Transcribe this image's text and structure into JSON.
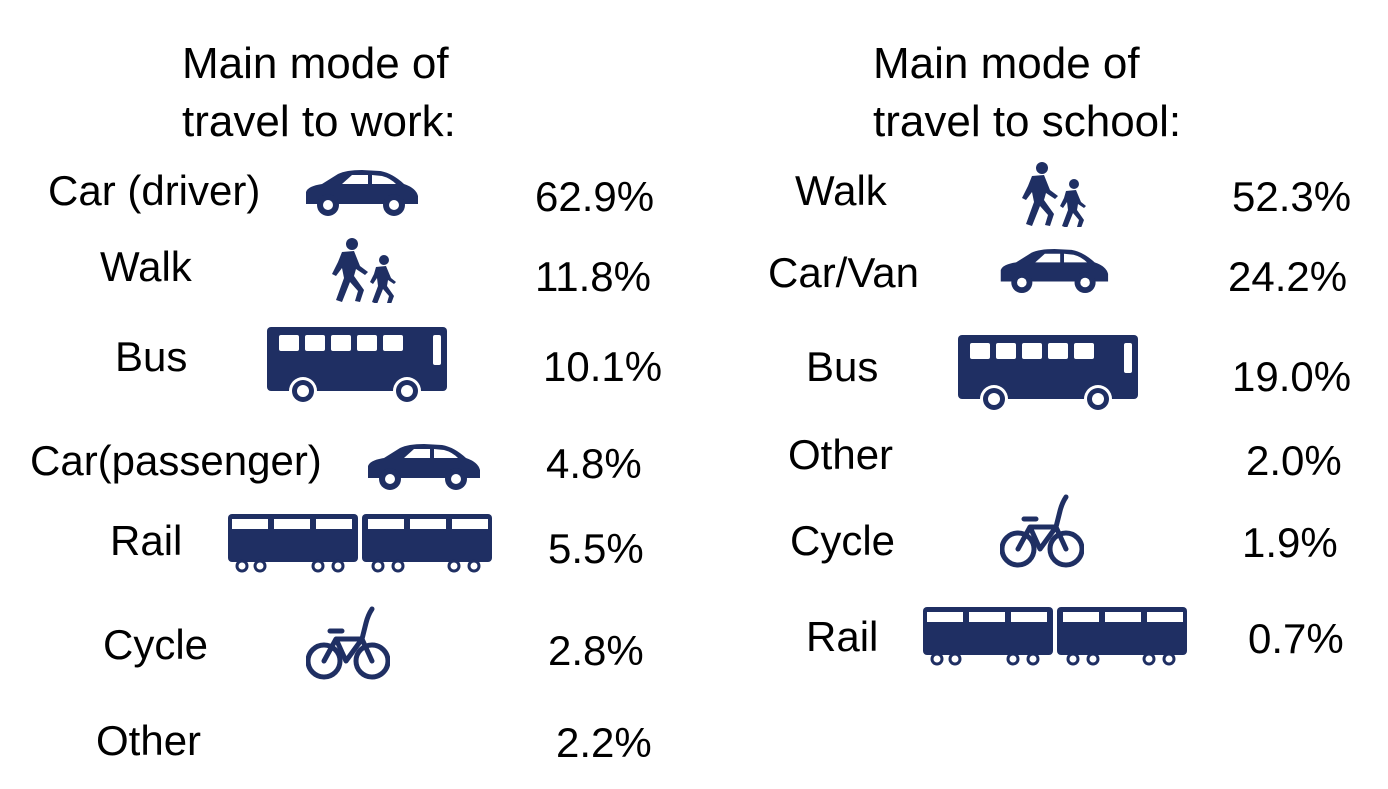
{
  "work": {
    "title_line1": "Main mode of",
    "title_line2": "travel to work:",
    "items": [
      {
        "label": "Car (driver)",
        "value": "62.9%",
        "icon": "car-icon"
      },
      {
        "label": "Walk",
        "value": "11.8%",
        "icon": "walking-people-icon"
      },
      {
        "label": "Bus",
        "value": "10.1%",
        "icon": "bus-icon"
      },
      {
        "label": "Car(passenger)",
        "value": "4.8%",
        "icon": "car-icon"
      },
      {
        "label": "Rail",
        "value": "5.5%",
        "icon": "train-icon"
      },
      {
        "label": "Cycle",
        "value": "2.8%",
        "icon": "bicycle-icon"
      },
      {
        "label": "Other",
        "value": "2.2%",
        "icon": ""
      }
    ]
  },
  "school": {
    "title_line1": "Main mode of",
    "title_line2": "travel to school:",
    "items": [
      {
        "label": "Walk",
        "value": "52.3%",
        "icon": "walking-people-icon"
      },
      {
        "label": "Car/Van",
        "value": "24.2%",
        "icon": "car-icon"
      },
      {
        "label": "Bus",
        "value": "19.0%",
        "icon": "bus-icon"
      },
      {
        "label": "Other",
        "value": "2.0%",
        "icon": ""
      },
      {
        "label": "Cycle",
        "value": "1.9%",
        "icon": "bicycle-icon"
      },
      {
        "label": "Rail",
        "value": "0.7%",
        "icon": "train-icon"
      }
    ]
  },
  "colors": {
    "icon": "#1f2f63",
    "text": "#000000",
    "background": "#ffffff"
  }
}
